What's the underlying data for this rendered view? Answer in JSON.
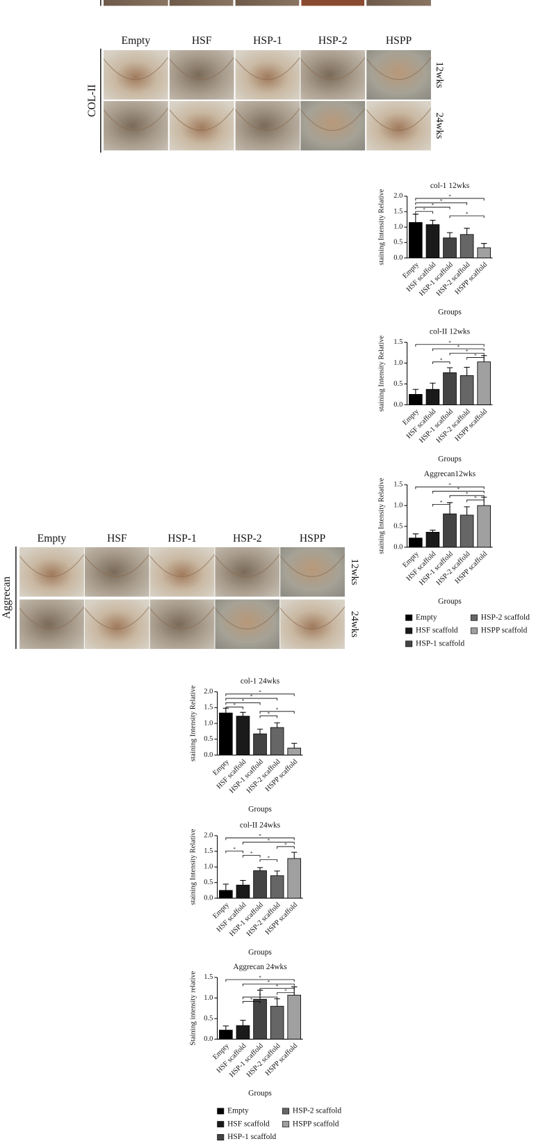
{
  "panels": [
    {
      "label": "COL-II",
      "columns": [
        "Empty",
        "HSF",
        "HSP-1",
        "HSP-2",
        "HSPP"
      ],
      "rows": [
        "12wks",
        "24wks"
      ]
    },
    {
      "label": "Aggrecan",
      "columns": [
        "Empty",
        "HSF",
        "HSP-1",
        "HSP-2",
        "HSPP"
      ],
      "rows": [
        "12wks",
        "24wks"
      ]
    }
  ],
  "chart_data": [
    {
      "type": "bar",
      "title": "col-1 12wks",
      "ylabel": "staining Intensity Relative",
      "xlabel": "Groups",
      "categories": [
        "Empty",
        "HSF scaffold",
        "HSP-1 scaffold",
        "HSP-2 scaffold",
        "HSPP scaffold"
      ],
      "values": [
        1.15,
        1.08,
        0.65,
        0.76,
        0.33
      ],
      "errors": [
        0.27,
        0.14,
        0.17,
        0.2,
        0.14
      ],
      "colors": [
        "#000000",
        "#1a1a1a",
        "#444444",
        "#666666",
        "#a0a0a0"
      ],
      "ylim": [
        0,
        2
      ],
      "yticks": [
        {
          "value": 0,
          "label": "0.0"
        },
        0.5,
        {
          "value": 1,
          "label": "1.0"
        },
        1.5,
        {
          "value": 2,
          "label": "2.0"
        }
      ],
      "significance": [
        {
          "from": "Empty",
          "to": "HSPP scaffold",
          "label": "*"
        },
        {
          "from": "Empty",
          "to": "HSP-2 scaffold",
          "label": "*"
        },
        {
          "from": "Empty",
          "to": "HSP-1 scaffold",
          "label": "*"
        },
        {
          "from": "Empty",
          "to": "HSF scaffold",
          "label": "*"
        },
        {
          "from": "HSP-1 scaffold",
          "to": "HSPP scaffold",
          "label": "*"
        }
      ]
    },
    {
      "type": "bar",
      "title": "col-II 12wks",
      "ylabel": "staining Intensity Relative",
      "xlabel": "Groups",
      "categories": [
        "Empty",
        "HSF scaffold",
        "HSP-1 scaffold",
        "HSP-2 scaffold",
        "HSPP scaffold"
      ],
      "values": [
        0.25,
        0.37,
        0.77,
        0.7,
        1.03
      ],
      "errors": [
        0.12,
        0.15,
        0.12,
        0.2,
        0.15
      ],
      "colors": [
        "#000000",
        "#1a1a1a",
        "#444444",
        "#666666",
        "#a0a0a0"
      ],
      "ylim": [
        0,
        1.5
      ],
      "yticks": [
        {
          "value": 0,
          "label": "0.0"
        },
        0.5,
        {
          "value": 1,
          "label": "1.0"
        },
        1.5
      ],
      "significance": [
        {
          "from": "Empty",
          "to": "HSPP scaffold",
          "label": "*"
        },
        {
          "from": "HSF scaffold",
          "to": "HSPP scaffold",
          "label": "*"
        },
        {
          "from": "HSP-1 scaffold",
          "to": "HSPP scaffold",
          "label": "*"
        },
        {
          "from": "HSP-2 scaffold",
          "to": "HSPP scaffold",
          "label": "*"
        },
        {
          "from": "HSF scaffold",
          "to": "HSP-1 scaffold",
          "label": "*"
        }
      ]
    },
    {
      "type": "bar",
      "title": "Aggrecan12wks",
      "ylabel": "staining Intensity Relative",
      "xlabel": "Groups",
      "categories": [
        "Empty",
        "HSF scaffold",
        "HSP-1 scaffold",
        "HSP-2 scaffold",
        "HSPP scaffold"
      ],
      "values": [
        0.22,
        0.36,
        0.8,
        0.77,
        1.0
      ],
      "errors": [
        0.1,
        0.05,
        0.27,
        0.2,
        0.2
      ],
      "colors": [
        "#000000",
        "#1a1a1a",
        "#444444",
        "#666666",
        "#a0a0a0"
      ],
      "ylim": [
        0,
        1.5
      ],
      "yticks": [
        {
          "value": 0,
          "label": "0.0"
        },
        0.5,
        {
          "value": 1,
          "label": "1.0"
        },
        1.5
      ],
      "significance": [
        {
          "from": "Empty",
          "to": "HSPP scaffold",
          "label": "*"
        },
        {
          "from": "HSF scaffold",
          "to": "HSPP scaffold",
          "label": "*"
        },
        {
          "from": "HSP-1 scaffold",
          "to": "HSPP scaffold",
          "label": "*"
        },
        {
          "from": "HSP-2 scaffold",
          "to": "HSPP scaffold",
          "label": "*"
        },
        {
          "from": "HSF scaffold",
          "to": "HSP-1 scaffold",
          "label": "*"
        }
      ]
    },
    {
      "type": "bar",
      "title": "col-1 24wks",
      "ylabel": "staining Intensity Relative",
      "xlabel": "Groups",
      "categories": [
        "Empty",
        "HSF scaffold",
        "HSP-1 scaffold",
        "HSP-2 scaffold",
        "HSPP scaffold"
      ],
      "values": [
        1.33,
        1.23,
        0.67,
        0.87,
        0.22
      ],
      "errors": [
        0.15,
        0.12,
        0.15,
        0.15,
        0.15
      ],
      "colors": [
        "#000000",
        "#1a1a1a",
        "#444444",
        "#666666",
        "#a0a0a0"
      ],
      "ylim": [
        0,
        2
      ],
      "yticks": [
        {
          "value": 0,
          "label": "0.0"
        },
        0.5,
        {
          "value": 1,
          "label": "1.0"
        },
        1.5,
        {
          "value": 2,
          "label": "2.0"
        }
      ],
      "significance": [
        {
          "from": "Empty",
          "to": "HSPP scaffold",
          "label": "*"
        },
        {
          "from": "Empty",
          "to": "HSP-2 scaffold",
          "label": "*"
        },
        {
          "from": "Empty",
          "to": "HSP-1 scaffold",
          "label": "*"
        },
        {
          "from": "Empty",
          "to": "HSF scaffold",
          "label": "*"
        },
        {
          "from": "HSP-1 scaffold",
          "to": "HSPP scaffold",
          "label": "*"
        },
        {
          "from": "HSP-1 scaffold",
          "to": "HSP-2 scaffold",
          "label": "*"
        }
      ]
    },
    {
      "type": "bar",
      "title": "col-II 24wks",
      "ylabel": "staining Intensity Relative",
      "xlabel": "Groups",
      "categories": [
        "Empty",
        "HSF scaffold",
        "HSP-1 scaffold",
        "HSP-2 scaffold",
        "HSPP scaffold"
      ],
      "values": [
        0.25,
        0.42,
        0.88,
        0.72,
        1.27
      ],
      "errors": [
        0.2,
        0.15,
        0.1,
        0.15,
        0.2
      ],
      "colors": [
        "#000000",
        "#1a1a1a",
        "#444444",
        "#666666",
        "#a0a0a0"
      ],
      "ylim": [
        0,
        2
      ],
      "yticks": [
        {
          "value": 0,
          "label": "0.0"
        },
        0.5,
        {
          "value": 1,
          "label": "1.0"
        },
        1.5,
        {
          "value": 2,
          "label": "2.0"
        }
      ],
      "significance": [
        {
          "from": "Empty",
          "to": "HSPP scaffold",
          "label": "*"
        },
        {
          "from": "HSF scaffold",
          "to": "HSPP scaffold",
          "label": "*"
        },
        {
          "from": "HSP-2 scaffold",
          "to": "HSPP scaffold",
          "label": "*"
        },
        {
          "from": "Empty",
          "to": "HSF scaffold",
          "label": "*"
        },
        {
          "from": "HSF scaffold",
          "to": "HSP-1 scaffold",
          "label": "*"
        },
        {
          "from": "HSP-1 scaffold",
          "to": "HSP-2 scaffold",
          "label": "*"
        }
      ]
    },
    {
      "type": "bar",
      "title": "Aggrecan 24wks",
      "ylabel": "Staining intensity relative",
      "xlabel": "Groups",
      "categories": [
        "Empty",
        "HSF scaffold",
        "HSP-1 scaffold",
        "HSP-2 scaffold",
        "HSPP scaffold"
      ],
      "values": [
        0.22,
        0.33,
        0.97,
        0.8,
        1.07
      ],
      "errors": [
        0.1,
        0.13,
        0.22,
        0.18,
        0.2
      ],
      "colors": [
        "#000000",
        "#1a1a1a",
        "#444444",
        "#666666",
        "#a0a0a0"
      ],
      "ylim": [
        0,
        1.5
      ],
      "yticks": [
        {
          "value": 0,
          "label": "0.0"
        },
        0.5,
        {
          "value": 1,
          "label": "1.0"
        },
        1.5
      ],
      "significance": [
        {
          "from": "Empty",
          "to": "HSPP scaffold",
          "label": "*"
        },
        {
          "from": "HSF scaffold",
          "to": "HSPP scaffold",
          "label": "*"
        },
        {
          "from": "HSP-1 scaffold",
          "to": "HSPP scaffold",
          "label": "*"
        },
        {
          "from": "HSP-2 scaffold",
          "to": "HSPP scaffold",
          "label": "*"
        },
        {
          "from": "HSF scaffold",
          "to": "HSP-2 scaffold",
          "label": "*"
        },
        {
          "from": "HSF scaffold",
          "to": "HSP-1 scaffold",
          "label": "*"
        }
      ]
    }
  ]
}
